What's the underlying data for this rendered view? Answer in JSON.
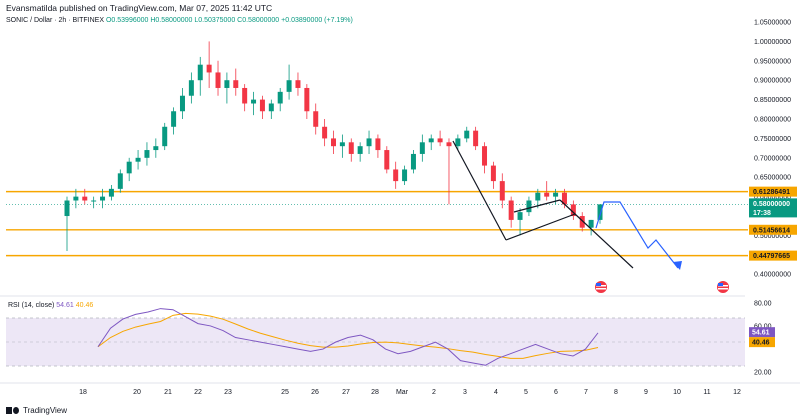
{
  "header": {
    "published": "Evansmatilda published on TradingView.com, Mar 07, 2025 11:42 UTC"
  },
  "symbol": {
    "name": "SONIC / Dollar · 2h · BITFINEX",
    "ohlc": "O0.53996000 H0.58000000 L0.50375000 C0.58000000",
    "change": "+0.03890000 (+7.19%)"
  },
  "price_axis": {
    "ticks": [
      "1.05000000",
      "1.00000000",
      "0.95000000",
      "0.90000000",
      "0.85000000",
      "0.80000000",
      "0.75000000",
      "0.70000000",
      "0.65000000",
      "0.60000000",
      "0.50000000",
      "0.40000000"
    ],
    "tags": [
      {
        "label": "0.61286491",
        "color": "#f7a600",
        "text_color": "#131722"
      },
      {
        "label": "0.58000000",
        "color": "#089981",
        "text_color": "#ffffff"
      },
      {
        "label": "17:38",
        "color": "#089981",
        "text_color": "#ffffff"
      },
      {
        "label": "0.51456614",
        "color": "#f7a600",
        "text_color": "#131722"
      },
      {
        "label": "0.44797665",
        "color": "#f7a600",
        "text_color": "#131722"
      }
    ]
  },
  "time_axis": {
    "labels": [
      "18",
      "20",
      "21",
      "22",
      "23",
      "25",
      "26",
      "27",
      "28",
      "Mar",
      "2",
      "3",
      "4",
      "5",
      "6",
      "7",
      "8",
      "9",
      "10",
      "11",
      "12"
    ]
  },
  "rsi": {
    "label": "RSI (14, close)",
    "value": "54.61",
    "ma": "40.46",
    "ticks": [
      "80.00",
      "60.00",
      "20.00"
    ],
    "tags": [
      {
        "label": "54.61",
        "color": "#7e57c2"
      },
      {
        "label": "40.46",
        "color": "#f7a600"
      }
    ]
  },
  "footer": {
    "brand": "TradingView"
  },
  "colors": {
    "up": "#089981",
    "down": "#f23645",
    "level": "#f7a600",
    "projection": "#2962ff",
    "rsi_line": "#7e57c2",
    "rsi_ma": "#f7a600",
    "rsi_band": "#ede7f6"
  },
  "chart_data": {
    "type": "candlestick",
    "y_scale_range": [
      0.38,
      1.05
    ],
    "levels": [
      0.61286491,
      0.51456614,
      0.44797665
    ],
    "last_price": 0.58,
    "candles": [
      [
        0.55,
        0.6,
        0.46,
        0.59
      ],
      [
        0.59,
        0.62,
        0.57,
        0.6
      ],
      [
        0.6,
        0.62,
        0.58,
        0.59
      ],
      [
        0.59,
        0.6,
        0.57,
        0.59
      ],
      [
        0.59,
        0.62,
        0.57,
        0.6
      ],
      [
        0.6,
        0.63,
        0.59,
        0.62
      ],
      [
        0.62,
        0.67,
        0.61,
        0.66
      ],
      [
        0.66,
        0.7,
        0.64,
        0.69
      ],
      [
        0.69,
        0.72,
        0.67,
        0.7
      ],
      [
        0.7,
        0.74,
        0.68,
        0.72
      ],
      [
        0.72,
        0.75,
        0.7,
        0.73
      ],
      [
        0.73,
        0.79,
        0.72,
        0.78
      ],
      [
        0.78,
        0.83,
        0.76,
        0.82
      ],
      [
        0.82,
        0.88,
        0.8,
        0.86
      ],
      [
        0.86,
        0.92,
        0.84,
        0.9
      ],
      [
        0.9,
        0.96,
        0.86,
        0.94
      ],
      [
        0.94,
        1.0,
        0.88,
        0.92
      ],
      [
        0.92,
        0.95,
        0.86,
        0.88
      ],
      [
        0.88,
        0.92,
        0.84,
        0.9
      ],
      [
        0.9,
        0.93,
        0.86,
        0.88
      ],
      [
        0.88,
        0.89,
        0.82,
        0.84
      ],
      [
        0.84,
        0.87,
        0.81,
        0.85
      ],
      [
        0.85,
        0.86,
        0.8,
        0.82
      ],
      [
        0.82,
        0.85,
        0.8,
        0.84
      ],
      [
        0.84,
        0.88,
        0.82,
        0.87
      ],
      [
        0.87,
        0.94,
        0.85,
        0.9
      ],
      [
        0.9,
        0.92,
        0.86,
        0.88
      ],
      [
        0.88,
        0.89,
        0.8,
        0.82
      ],
      [
        0.82,
        0.84,
        0.76,
        0.78
      ],
      [
        0.78,
        0.8,
        0.73,
        0.75
      ],
      [
        0.75,
        0.77,
        0.71,
        0.73
      ],
      [
        0.73,
        0.76,
        0.7,
        0.74
      ],
      [
        0.74,
        0.75,
        0.69,
        0.71
      ],
      [
        0.71,
        0.74,
        0.69,
        0.73
      ],
      [
        0.73,
        0.77,
        0.71,
        0.75
      ],
      [
        0.75,
        0.76,
        0.7,
        0.72
      ],
      [
        0.72,
        0.73,
        0.66,
        0.67
      ],
      [
        0.67,
        0.69,
        0.62,
        0.64
      ],
      [
        0.64,
        0.68,
        0.63,
        0.67
      ],
      [
        0.67,
        0.72,
        0.66,
        0.71
      ],
      [
        0.71,
        0.76,
        0.69,
        0.74
      ],
      [
        0.74,
        0.76,
        0.72,
        0.75
      ],
      [
        0.75,
        0.77,
        0.73,
        0.74
      ],
      [
        0.74,
        0.75,
        0.58,
        0.73
      ],
      [
        0.73,
        0.76,
        0.72,
        0.75
      ],
      [
        0.75,
        0.78,
        0.74,
        0.77
      ],
      [
        0.77,
        0.78,
        0.72,
        0.73
      ],
      [
        0.73,
        0.74,
        0.66,
        0.68
      ],
      [
        0.68,
        0.69,
        0.62,
        0.64
      ],
      [
        0.64,
        0.66,
        0.57,
        0.59
      ],
      [
        0.59,
        0.6,
        0.52,
        0.54
      ],
      [
        0.54,
        0.57,
        0.5,
        0.56
      ],
      [
        0.56,
        0.6,
        0.55,
        0.59
      ],
      [
        0.59,
        0.62,
        0.57,
        0.61
      ],
      [
        0.61,
        0.64,
        0.59,
        0.6
      ],
      [
        0.6,
        0.62,
        0.58,
        0.61
      ],
      [
        0.61,
        0.62,
        0.57,
        0.58
      ],
      [
        0.58,
        0.59,
        0.54,
        0.55
      ],
      [
        0.55,
        0.56,
        0.51,
        0.52
      ],
      [
        0.52,
        0.54,
        0.5,
        0.54
      ],
      [
        0.54,
        0.58,
        0.53,
        0.58
      ]
    ],
    "projection": [
      [
        0.58,
        0.58
      ],
      [
        0.62,
        0.62
      ],
      [
        0.48,
        0.5
      ],
      [
        0.46,
        0.44
      ]
    ],
    "rsi": [
      42,
      58,
      66,
      70,
      72,
      75,
      74,
      68,
      62,
      60,
      56,
      50,
      48,
      46,
      44,
      42,
      40,
      38,
      40,
      46,
      50,
      52,
      48,
      40,
      36,
      38,
      42,
      46,
      40,
      30,
      28,
      26,
      32,
      36,
      40,
      44,
      40,
      36,
      34,
      40,
      54
    ]
  }
}
